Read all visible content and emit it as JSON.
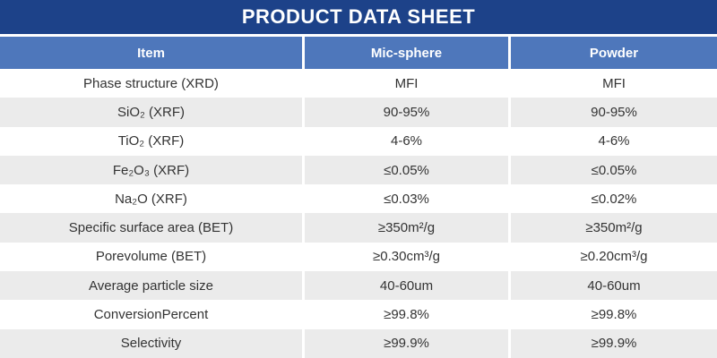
{
  "banner": {
    "title": "PRODUCT DATA SHEET"
  },
  "table": {
    "columns": [
      "Item",
      "Mic-sphere",
      "Powder"
    ],
    "rows": [
      {
        "item": "Phase structure (XRD)",
        "mic_sphere": "MFI",
        "powder": "MFI"
      },
      {
        "item": "SiO₂ (XRF)",
        "mic_sphere": "90-95%",
        "powder": "90-95%"
      },
      {
        "item": "TiO₂ (XRF)",
        "mic_sphere": "4-6%",
        "powder": "4-6%"
      },
      {
        "item": "Fe₂O₃ (XRF)",
        "mic_sphere": "≤0.05%",
        "powder": "≤0.05%"
      },
      {
        "item": "Na₂O (XRF)",
        "mic_sphere": "≤0.03%",
        "powder": "≤0.02%"
      },
      {
        "item": "Specific surface area (BET)",
        "mic_sphere": "≥350m²/g",
        "powder": "≥350m²/g"
      },
      {
        "item": "Porevolume (BET)",
        "mic_sphere": "≥0.30cm³/g",
        "powder": "≥0.20cm³/g"
      },
      {
        "item": "Average particle size",
        "mic_sphere": "40-60um",
        "powder": "40-60um"
      },
      {
        "item": "ConversionPercent",
        "mic_sphere": "≥99.8%",
        "powder": "≥99.8%"
      },
      {
        "item": "Selectivity",
        "mic_sphere": "≥99.9%",
        "powder": "≥99.9%"
      }
    ]
  },
  "colors": {
    "banner_bg": "#1d4289",
    "header_bg": "#4e77bb",
    "row_alt_bg": "#ebebeb",
    "text": "#333333"
  }
}
